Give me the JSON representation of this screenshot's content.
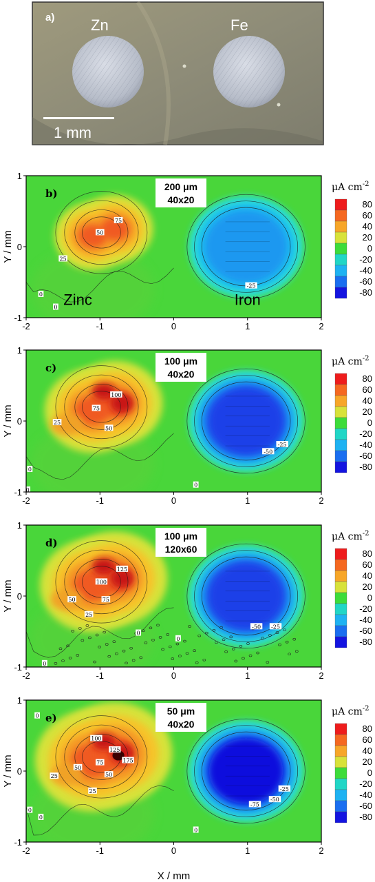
{
  "photo": {
    "panel_label": "a)",
    "left_label": "Zn",
    "right_label": "Fe",
    "scale_label": "1 mm"
  },
  "axes": {
    "x_label": "X / mm",
    "y_label": "Y / mm",
    "x_ticks": [
      "-2",
      "-1",
      "0",
      "1",
      "2"
    ],
    "y_ticks": [
      "-1",
      "0",
      "1"
    ]
  },
  "colorbar": {
    "title": "μA cm",
    "title_sup": "-2",
    "levels": [
      "80",
      "60",
      "40",
      "20",
      "0",
      "-20",
      "-40",
      "-60",
      "-80"
    ],
    "colors": [
      "#ee1c1c",
      "#f56820",
      "#f7a628",
      "#d8e23a",
      "#3ddc3a",
      "#21d6c6",
      "#1eb2f2",
      "#1a6ef0",
      "#1414e0"
    ]
  },
  "chart_data": [
    {
      "type": "heatmap",
      "panel": "b)",
      "resolution": "200 μm",
      "grid": "40x20",
      "xlim": [
        -2,
        2
      ],
      "ylim": [
        -1,
        1
      ],
      "zinc_label": "Zinc",
      "iron_label": "Iron",
      "contour_labels": [
        "75",
        "50",
        "25",
        "-25",
        "0",
        "0"
      ]
    },
    {
      "type": "heatmap",
      "panel": "c)",
      "resolution": "100 μm",
      "grid": "40x20",
      "xlim": [
        -2,
        2
      ],
      "ylim": [
        -1,
        1
      ],
      "contour_labels": [
        "100",
        "75",
        "50",
        "25",
        "-50",
        "-25",
        "0",
        "0",
        "0"
      ]
    },
    {
      "type": "heatmap",
      "panel": "d)",
      "resolution": "100 μm",
      "grid": "120x60",
      "xlim": [
        -2,
        2
      ],
      "ylim": [
        -1,
        1
      ],
      "contour_labels": [
        "125",
        "100",
        "75",
        "50",
        "25",
        "-50",
        "-25",
        "0",
        "0",
        "0"
      ]
    },
    {
      "type": "heatmap",
      "panel": "e)",
      "resolution": "50 μm",
      "grid": "40x20",
      "xlim": [
        -2,
        2
      ],
      "ylim": [
        -1,
        1
      ],
      "contour_labels": [
        "100",
        "125",
        "75",
        "175",
        "50",
        "50",
        "25",
        "25",
        "-25",
        "-50",
        "-75",
        "0",
        "0",
        "0",
        "0"
      ]
    }
  ]
}
